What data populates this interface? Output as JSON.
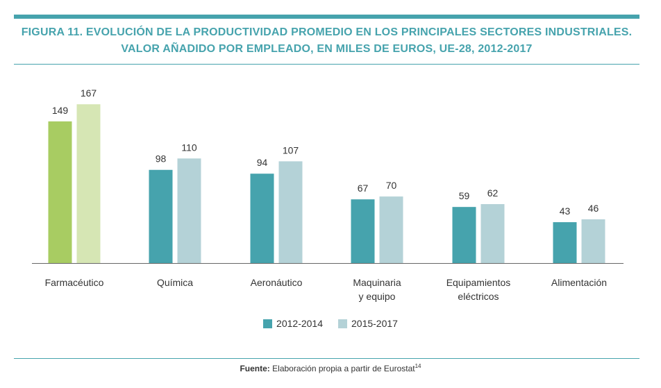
{
  "colors": {
    "accent": "#46a3ad",
    "series_2012": "#46a3ad",
    "series_2015": "#b4d2d7",
    "highlight_2012": "#a8cc62",
    "highlight_2015": "#d6e6b4",
    "axis": "#666666"
  },
  "chart_data": {
    "type": "bar",
    "title_line1": "FIGURA 11. EVOLUCIÓN DE LA PRODUCTIVIDAD PROMEDIO EN LOS PRINCIPALES SECTORES INDUSTRIALES.",
    "title_line2": "VALOR AÑADIDO POR EMPLEADO, EN MILES DE EUROS, UE-28, 2012-2017",
    "xlabel": "",
    "ylabel": "",
    "ylim": [
      0,
      180
    ],
    "grid": false,
    "legend_position": "bottom-center",
    "categories": [
      [
        "Farmacéutico"
      ],
      [
        "Química"
      ],
      [
        "Aeronáutico"
      ],
      [
        "Maquinaria",
        "y equipo"
      ],
      [
        "Equipamientos",
        "eléctricos"
      ],
      [
        "Alimentación"
      ]
    ],
    "highlighted_category": 0,
    "series": [
      {
        "name": "2012-2014",
        "values": [
          149,
          98,
          94,
          67,
          59,
          43
        ]
      },
      {
        "name": "2015-2017",
        "values": [
          167,
          110,
          107,
          70,
          62,
          46
        ]
      }
    ]
  },
  "source": {
    "label": "Fuente:",
    "text": " Elaboración propia a partir de Eurostat",
    "footnote": "14"
  }
}
